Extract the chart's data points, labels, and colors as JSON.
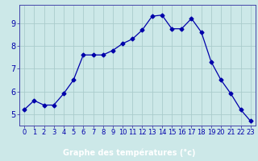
{
  "x": [
    0,
    1,
    2,
    3,
    4,
    5,
    6,
    7,
    8,
    9,
    10,
    11,
    12,
    13,
    14,
    15,
    16,
    17,
    18,
    19,
    20,
    21,
    22,
    23
  ],
  "y": [
    5.2,
    5.6,
    5.4,
    5.4,
    5.9,
    6.5,
    7.6,
    7.6,
    7.6,
    7.8,
    8.1,
    8.3,
    8.7,
    9.3,
    9.35,
    8.75,
    8.75,
    9.2,
    8.6,
    7.3,
    6.5,
    5.9,
    5.2,
    4.7
  ],
  "line_color": "#0000aa",
  "marker": "D",
  "marker_size": 2.5,
  "bg_color": "#cce8e8",
  "grid_color": "#aacccc",
  "xlabel": "Graphe des températures (°c)",
  "xlabel_color": "#ffffff",
  "xlabel_fontsize": 7,
  "tick_color": "#0000aa",
  "tick_fontsize": 6,
  "ylim": [
    4.5,
    9.8
  ],
  "yticks": [
    5,
    6,
    7,
    8,
    9
  ],
  "xlim": [
    -0.5,
    23.5
  ],
  "xticks": [
    0,
    1,
    2,
    3,
    4,
    5,
    6,
    7,
    8,
    9,
    10,
    11,
    12,
    13,
    14,
    15,
    16,
    17,
    18,
    19,
    20,
    21,
    22,
    23
  ],
  "spine_color": "#4444aa",
  "bottom_bar_color": "#0000bb",
  "bottom_bar_height": 0.115
}
